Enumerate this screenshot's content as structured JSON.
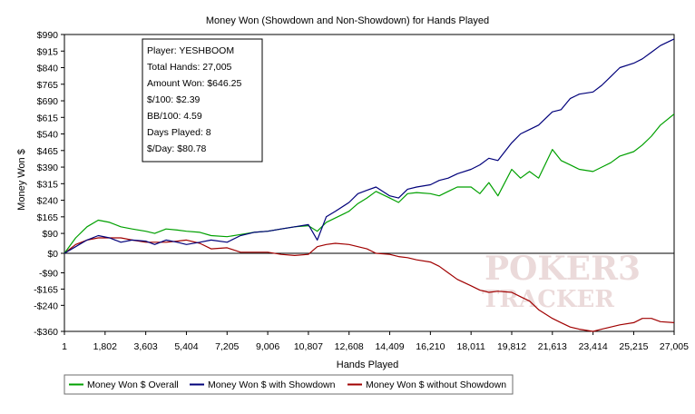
{
  "chart_data": {
    "type": "line",
    "title": "Money Won (Showdown and Non-Showdown) for Hands Played",
    "xlabel": "Hands Played",
    "ylabel": "Money Won $",
    "xlim": [
      1,
      27005
    ],
    "ylim": [
      -360,
      990
    ],
    "x_ticks": [
      1,
      1802,
      3603,
      5404,
      7205,
      9006,
      10807,
      12608,
      14409,
      16210,
      18011,
      19812,
      21613,
      23414,
      25215,
      27005
    ],
    "x_tick_labels": [
      "1",
      "1,802",
      "3,603",
      "5,404",
      "7,205",
      "9,006",
      "10,807",
      "12,608",
      "14,409",
      "16,210",
      "18,011",
      "19,812",
      "21,613",
      "23,414",
      "25,215",
      "27,005"
    ],
    "y_ticks": [
      990,
      915,
      840,
      765,
      690,
      615,
      540,
      465,
      390,
      315,
      240,
      165,
      90,
      0,
      -90,
      -165,
      -240,
      -360
    ],
    "y_tick_labels": [
      "$990",
      "$915",
      "$840",
      "$765",
      "$690",
      "$615",
      "$540",
      "$465",
      "$390",
      "$315",
      "$240",
      "$165",
      "$90",
      "$0",
      "-$90",
      "-$165",
      "-$240",
      "-$360"
    ],
    "grid": false,
    "legend_position": "bottom-left",
    "series": [
      {
        "name": "Money Won $ Overall",
        "color": "#00a000",
        "x": [
          1,
          500,
          1000,
          1500,
          2000,
          2500,
          3000,
          3603,
          4000,
          4500,
          5000,
          5404,
          6000,
          6500,
          7205,
          7800,
          8400,
          9006,
          9600,
          10200,
          10807,
          11200,
          11600,
          12000,
          12608,
          13000,
          13400,
          13800,
          14409,
          14800,
          15200,
          15600,
          16210,
          16600,
          17000,
          17400,
          18011,
          18400,
          18800,
          19200,
          19812,
          20200,
          20600,
          21000,
          21613,
          22000,
          22400,
          22800,
          23414,
          23800,
          24200,
          24600,
          25215,
          25600,
          26000,
          26400,
          27005
        ],
        "values": [
          0,
          70,
          120,
          150,
          140,
          120,
          110,
          100,
          90,
          110,
          105,
          100,
          95,
          80,
          75,
          85,
          95,
          100,
          110,
          120,
          125,
          100,
          140,
          160,
          190,
          225,
          250,
          280,
          250,
          230,
          270,
          275,
          270,
          260,
          280,
          300,
          300,
          270,
          320,
          260,
          380,
          340,
          370,
          340,
          470,
          420,
          400,
          380,
          370,
          390,
          410,
          440,
          460,
          490,
          530,
          580,
          630
        ]
      },
      {
        "name": "Money Won $ with Showdown",
        "color": "#00007a",
        "x": [
          1,
          500,
          1000,
          1500,
          2000,
          2500,
          3000,
          3603,
          4000,
          4500,
          5000,
          5404,
          6000,
          6500,
          7205,
          7800,
          8400,
          9006,
          9600,
          10200,
          10807,
          11200,
          11600,
          12000,
          12608,
          13000,
          13400,
          13800,
          14409,
          14800,
          15200,
          15600,
          16210,
          16600,
          17000,
          17400,
          18011,
          18400,
          18800,
          19200,
          19812,
          20200,
          20600,
          21000,
          21613,
          22000,
          22400,
          22800,
          23414,
          23800,
          24200,
          24600,
          25215,
          25600,
          26000,
          26400,
          27005
        ],
        "values": [
          0,
          30,
          60,
          80,
          70,
          50,
          60,
          55,
          40,
          60,
          50,
          40,
          50,
          60,
          50,
          80,
          95,
          100,
          110,
          120,
          130,
          60,
          165,
          190,
          230,
          270,
          285,
          300,
          260,
          250,
          290,
          300,
          310,
          330,
          340,
          360,
          380,
          400,
          430,
          420,
          500,
          540,
          560,
          580,
          640,
          650,
          700,
          720,
          730,
          760,
          800,
          840,
          860,
          880,
          910,
          940,
          970
        ]
      },
      {
        "name": "Money Won $ without Showdown",
        "color": "#a00000",
        "x": [
          1,
          500,
          1000,
          1500,
          2000,
          2500,
          3000,
          3603,
          4000,
          4500,
          5000,
          5404,
          6000,
          6500,
          7205,
          7800,
          8400,
          9006,
          9600,
          10200,
          10807,
          11200,
          11600,
          12000,
          12608,
          13000,
          13400,
          13800,
          14409,
          14800,
          15200,
          15600,
          16210,
          16600,
          17000,
          17400,
          18011,
          18400,
          18800,
          19200,
          19812,
          20200,
          20600,
          21000,
          21613,
          22000,
          22400,
          22800,
          23414,
          23800,
          24200,
          24600,
          25215,
          25600,
          26000,
          26400,
          27005
        ],
        "values": [
          0,
          40,
          60,
          70,
          70,
          70,
          60,
          50,
          50,
          50,
          55,
          60,
          45,
          20,
          25,
          5,
          5,
          5,
          -5,
          -10,
          -5,
          30,
          40,
          45,
          40,
          30,
          20,
          0,
          -5,
          -15,
          -20,
          -30,
          -40,
          -60,
          -90,
          -120,
          -150,
          -170,
          -180,
          -175,
          -180,
          -200,
          -220,
          -260,
          -300,
          -320,
          -340,
          -350,
          -360,
          -350,
          -340,
          -330,
          -320,
          -300,
          -300,
          -315,
          -320
        ]
      }
    ],
    "annotation_box": [
      "Player: YESHBOOM",
      "Total Hands: 27,005",
      "Amount Won: $646.25",
      "$/100: $2.39",
      "BB/100: 4.59",
      "Days Played: 8",
      "$/Day: $80.78"
    ],
    "watermark": [
      "POKER3",
      "TRACKER"
    ]
  }
}
